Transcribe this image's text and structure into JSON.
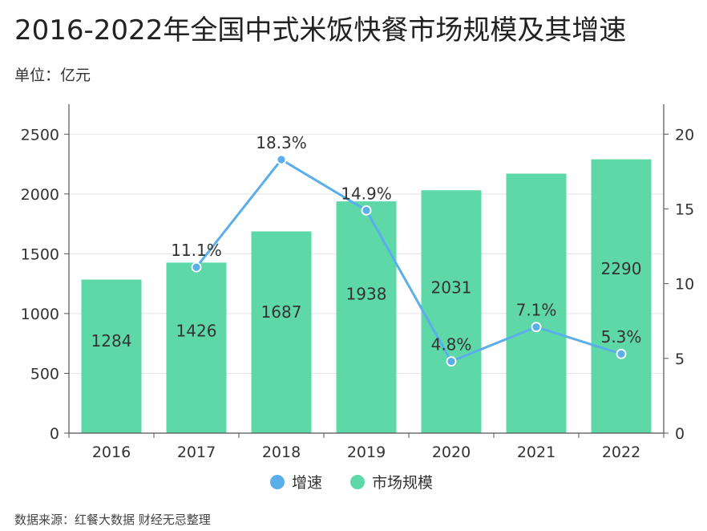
{
  "title": "2016-2022年全国中式米饭快餐市场规模及其增速",
  "unit": "单位：亿元",
  "source": "数据来源：红餐大数据 财经无忌整理",
  "colors": {
    "bar": "#5fd8a8",
    "line": "#5aaeea",
    "axis": "#555555",
    "grid": "#e3e3e3"
  },
  "chart_data": {
    "type": "bar",
    "categories": [
      "2016",
      "2017",
      "2018",
      "2019",
      "2020",
      "2021",
      "2022"
    ],
    "series": [
      {
        "name": "市场规模",
        "type": "bar",
        "axis": "left",
        "values": [
          1284,
          1426,
          1687,
          1938,
          2031,
          2170,
          2290
        ],
        "labels": [
          "1284",
          "1426",
          "1687",
          "1938",
          "2031",
          "",
          "2290"
        ]
      },
      {
        "name": "增速",
        "type": "line",
        "axis": "right",
        "values": [
          null,
          11.1,
          18.3,
          14.9,
          4.8,
          7.1,
          5.3
        ],
        "labels": [
          "",
          "11.1%",
          "18.3%",
          "14.9%",
          "4.8%",
          "7.1%",
          "5.3%"
        ]
      }
    ],
    "left_axis": {
      "ticks": [
        "0",
        "500",
        "1000",
        "1500",
        "2000",
        "2500"
      ],
      "range": [
        0,
        2750
      ]
    },
    "right_axis": {
      "ticks": [
        "0",
        "5",
        "10",
        "15",
        "20"
      ],
      "range": [
        0,
        22
      ]
    },
    "grid": true,
    "legend": {
      "position": "bottom",
      "items": [
        "增速",
        "市场规模"
      ]
    }
  }
}
